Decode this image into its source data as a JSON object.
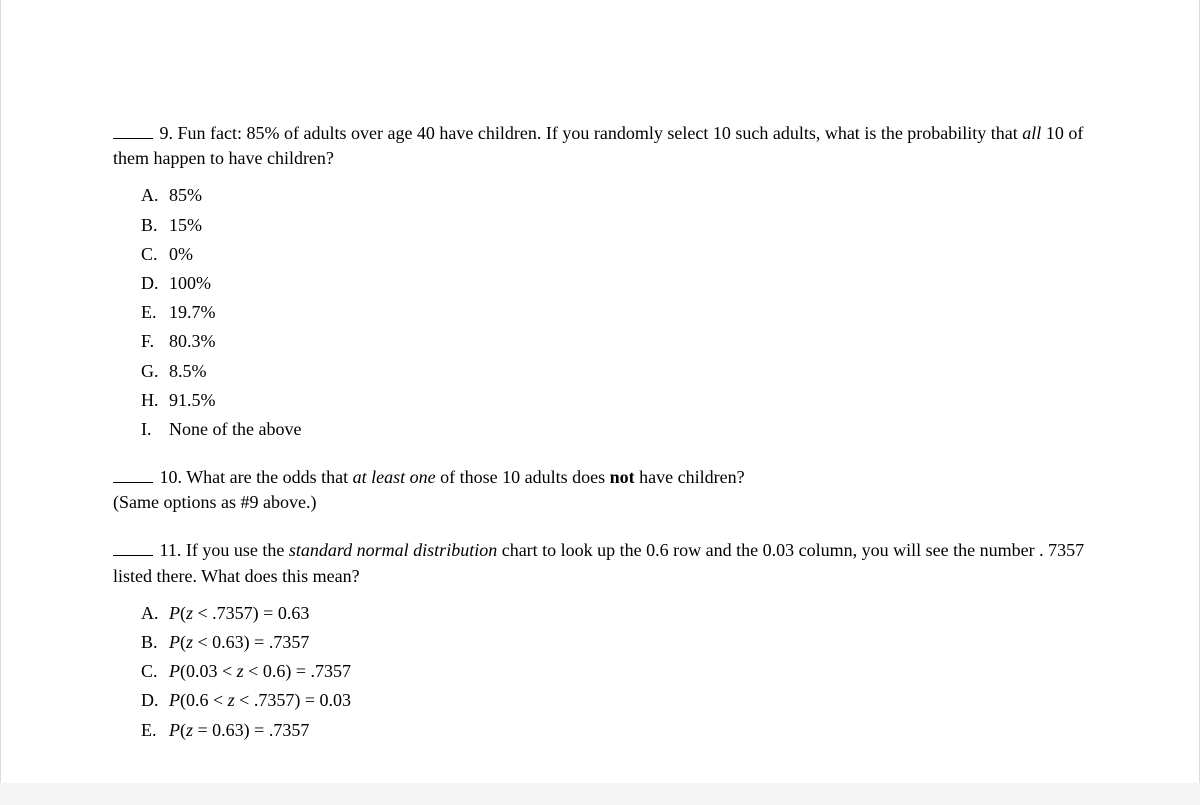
{
  "q9": {
    "number": "9.",
    "text_before_italic": "Fun fact: 85% of adults over age 40 have children. If you randomly select 10 such adults, what is the probability that ",
    "italic_word": "all",
    "text_after_italic": " 10 of them happen to have children?",
    "options": [
      {
        "letter": "A.",
        "text": "85%"
      },
      {
        "letter": "B.",
        "text": "15%"
      },
      {
        "letter": "C.",
        "text": "0%"
      },
      {
        "letter": "D.",
        "text": "100%"
      },
      {
        "letter": "E.",
        "text": "19.7%"
      },
      {
        "letter": "F.",
        "text": "80.3%"
      },
      {
        "letter": "G.",
        "text": "8.5%"
      },
      {
        "letter": "H.",
        "text": "91.5%"
      },
      {
        "letter": "I.",
        "text": "None of the above"
      }
    ]
  },
  "q10": {
    "number": "10.",
    "text_before_i1": "What are the odds that ",
    "italic1": "at least one",
    "text_mid": " of those 10 adults does ",
    "bold1": "not",
    "text_after": " have children?",
    "paren_note": "(Same options as #9 above.)"
  },
  "q11": {
    "number": "11.",
    "text_before_i1": "If you use the ",
    "italic1": "standard normal distribution",
    "text_after_i1": " chart to look up the 0.6 row and the 0.03 column, you will see the number . 7357 listed there. What does this mean?",
    "options": [
      {
        "letter": "A.",
        "expr_pre": "P(",
        "var": "z",
        "expr_post": " < .7357) = 0.63"
      },
      {
        "letter": "B.",
        "expr_pre": "P(",
        "var": "z",
        "expr_post": " < 0.63) = .7357"
      },
      {
        "letter": "C.",
        "expr_pre": "P(0.03 < ",
        "var": "z",
        "expr_post": " < 0.6) = .7357"
      },
      {
        "letter": "D.",
        "expr_pre": "P(0.6 < ",
        "var": "z",
        "expr_post": " < .7357) = 0.03"
      },
      {
        "letter": "E.",
        "expr_pre": "P(",
        "var": "z",
        "expr_post": " = 0.63) = .7357"
      }
    ]
  }
}
